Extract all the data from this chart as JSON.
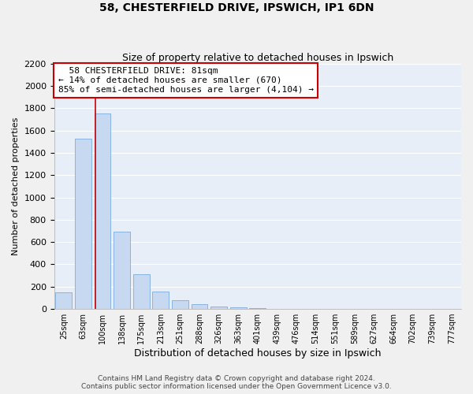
{
  "title1": "58, CHESTERFIELD DRIVE, IPSWICH, IP1 6DN",
  "title2": "Size of property relative to detached houses in Ipswich",
  "xlabel": "Distribution of detached houses by size in Ipswich",
  "ylabel": "Number of detached properties",
  "categories": [
    "25sqm",
    "63sqm",
    "100sqm",
    "138sqm",
    "175sqm",
    "213sqm",
    "251sqm",
    "288sqm",
    "326sqm",
    "363sqm",
    "401sqm",
    "439sqm",
    "476sqm",
    "514sqm",
    "551sqm",
    "589sqm",
    "627sqm",
    "664sqm",
    "702sqm",
    "739sqm",
    "777sqm"
  ],
  "values": [
    150,
    1530,
    1750,
    690,
    310,
    155,
    80,
    42,
    25,
    18,
    8,
    3,
    2,
    1,
    0,
    0,
    0,
    0,
    0,
    0,
    0
  ],
  "bar_color": "#c6d9f0",
  "bar_edge_color": "#7aace0",
  "vline_x": 1.62,
  "annotation_line1": "  58 CHESTERFIELD DRIVE: 81sqm",
  "annotation_line2": "← 14% of detached houses are smaller (670)",
  "annotation_line3": "85% of semi-detached houses are larger (4,104) →",
  "annotation_box_color": "#ffffff",
  "annotation_box_edge": "#cc0000",
  "vline_color": "#cc0000",
  "footer1": "Contains HM Land Registry data © Crown copyright and database right 2024.",
  "footer2": "Contains public sector information licensed under the Open Government Licence v3.0.",
  "ylim_max": 2200,
  "yticks": [
    0,
    200,
    400,
    600,
    800,
    1000,
    1200,
    1400,
    1600,
    1800,
    2000,
    2200
  ],
  "plot_bg_color": "#e8eef8",
  "grid_color": "#ffffff",
  "fig_bg_color": "#f0f0f0",
  "title1_fontsize": 10,
  "title2_fontsize": 9,
  "ylabel_fontsize": 8,
  "xlabel_fontsize": 9,
  "annotation_fontsize": 8,
  "footer_fontsize": 6.5,
  "xtick_fontsize": 7,
  "ytick_fontsize": 8
}
